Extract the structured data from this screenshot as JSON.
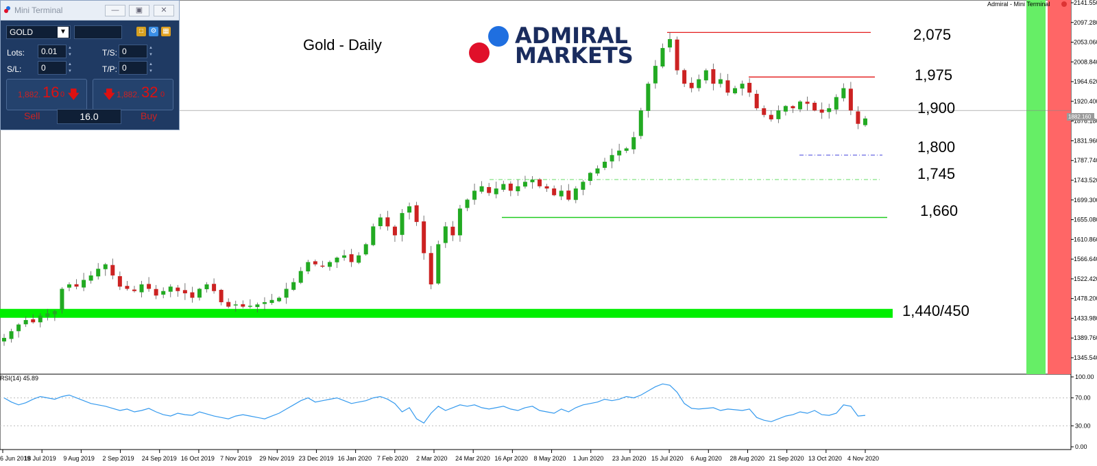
{
  "chart_data": {
    "type": "candlestick",
    "title": "Gold - Daily",
    "ylim": [
      1345.54,
      2141.55
    ],
    "y_ticks": [
      "2141.550",
      "2097.280",
      "2053.060",
      "2008.840",
      "1964.620",
      "1920.400",
      "1876.180",
      "1831.960",
      "1787.740",
      "1743.520",
      "1699.300",
      "1655.080",
      "1610.860",
      "1566.640",
      "1522.420",
      "1478.200",
      "1433.980",
      "1389.760",
      "1345.540"
    ],
    "x_ticks": [
      "6 Jun 2019",
      "18 Jul 2019",
      "9 Aug 2019",
      "2 Sep 2019",
      "24 Sep 2019",
      "16 Oct 2019",
      "7 Nov 2019",
      "29 Nov 2019",
      "23 Dec 2019",
      "16 Jan 2020",
      "7 Feb 2020",
      "2 Mar 2020",
      "24 Mar 2020",
      "16 Apr 2020",
      "8 May 2020",
      "1 Jun 2020",
      "23 Jun 2020",
      "15 Jul 2020",
      "6 Aug 2020",
      "28 Aug 2020",
      "21 Sep 2020",
      "13 Oct 2020",
      "4 Nov 2020"
    ],
    "current_price": "1882.160",
    "close_path": [
      1390,
      1405,
      1420,
      1430,
      1425,
      1440,
      1445,
      1450,
      1500,
      1510,
      1505,
      1520,
      1530,
      1545,
      1555,
      1530,
      1505,
      1500,
      1495,
      1510,
      1500,
      1485,
      1495,
      1505,
      1495,
      1490,
      1480,
      1500,
      1510,
      1495,
      1470,
      1460,
      1465,
      1460,
      1462,
      1465,
      1470,
      1475,
      1480,
      1500,
      1515,
      1540,
      1560,
      1555,
      1550,
      1560,
      1570,
      1575,
      1560,
      1575,
      1600,
      1640,
      1660,
      1640,
      1620,
      1670,
      1685,
      1650,
      1580,
      1510,
      1600,
      1640,
      1620,
      1680,
      1700,
      1720,
      1730,
      1715,
      1725,
      1735,
      1720,
      1730,
      1740,
      1745,
      1730,
      1725,
      1710,
      1720,
      1700,
      1725,
      1740,
      1760,
      1770,
      1785,
      1800,
      1810,
      1815,
      1840,
      1900,
      1960,
      2000,
      2040,
      2060,
      1990,
      1960,
      1950,
      1970,
      1990,
      1960,
      1970,
      1940,
      1950,
      1960,
      1940,
      1905,
      1890,
      1880,
      1900,
      1910,
      1905,
      1920,
      1915,
      1900,
      1895,
      1905,
      1930,
      1950,
      1900,
      1870,
      1882
    ],
    "rsi_path": [
      70,
      64,
      60,
      63,
      68,
      72,
      70,
      68,
      72,
      74,
      70,
      66,
      62,
      60,
      58,
      55,
      52,
      54,
      50,
      52,
      55,
      50,
      46,
      44,
      48,
      46,
      45,
      50,
      47,
      44,
      42,
      40,
      44,
      46,
      44,
      42,
      40,
      44,
      48,
      54,
      60,
      66,
      70,
      64,
      66,
      68,
      70,
      66,
      62,
      64,
      66,
      70,
      72,
      68,
      62,
      50,
      56,
      40,
      34,
      48,
      58,
      52,
      56,
      60,
      58,
      60,
      56,
      54,
      56,
      58,
      54,
      52,
      56,
      58,
      52,
      50,
      48,
      54,
      50,
      56,
      60,
      62,
      64,
      68,
      66,
      68,
      72,
      70,
      74,
      80,
      86,
      90,
      88,
      78,
      62,
      55,
      54,
      55,
      56,
      52,
      54,
      53,
      52,
      54,
      42,
      38,
      36,
      40,
      44,
      46,
      50,
      48,
      52,
      46,
      45,
      48,
      60,
      58,
      44,
      45
    ],
    "rsi_ylim": [
      0,
      100
    ],
    "rsi_ticks": [
      "100.00",
      "70.00",
      "30.00",
      "0.00"
    ],
    "rsi_label": "RSI(14) 45.89",
    "levels": [
      {
        "label": "2,075",
        "value": 2075,
        "color": "#e00000"
      },
      {
        "label": "1,975",
        "value": 1975,
        "color": "#e00000"
      },
      {
        "label": "1,900",
        "value": 1900,
        "color": "#888888"
      },
      {
        "label": "1,800",
        "value": 1800,
        "color": "#4444dd"
      },
      {
        "label": "1,745",
        "value": 1745,
        "color": "#66dd66"
      },
      {
        "label": "1,660",
        "value": 1660,
        "color": "#22cc22"
      },
      {
        "label": "1,440/450",
        "value": 1445,
        "color": "#00ee00"
      }
    ]
  },
  "brand": {
    "line1": "ADMIRAL",
    "line2": "MARKETS",
    "dot_blue": "#1f6fe0",
    "dot_red": "#e0102a"
  },
  "header_right": "Admiral - Mini Terminal",
  "colors": {
    "up": "#22aa22",
    "down": "#cc2222",
    "band_green": "#66ee66",
    "band_red": "#ff6666",
    "rsi_line": "#3399ee"
  },
  "mini_terminal": {
    "title": "Mini Terminal",
    "symbol": "GOLD",
    "lots_label": "Lots:",
    "lots_value": "0.01",
    "ts_label": "T/S:",
    "ts_value": "0",
    "sl_label": "S/L:",
    "sl_value": "0",
    "tp_label": "T/P:",
    "tp_value": "0",
    "sell_price_small": "1,882.",
    "sell_price_big": "16",
    "sell_price_sup": "0",
    "buy_price_small": "1,882.",
    "buy_price_big": "32",
    "buy_price_sup": "0",
    "sell_label": "Sell",
    "buy_label": "Buy",
    "quantity": "16.0"
  }
}
